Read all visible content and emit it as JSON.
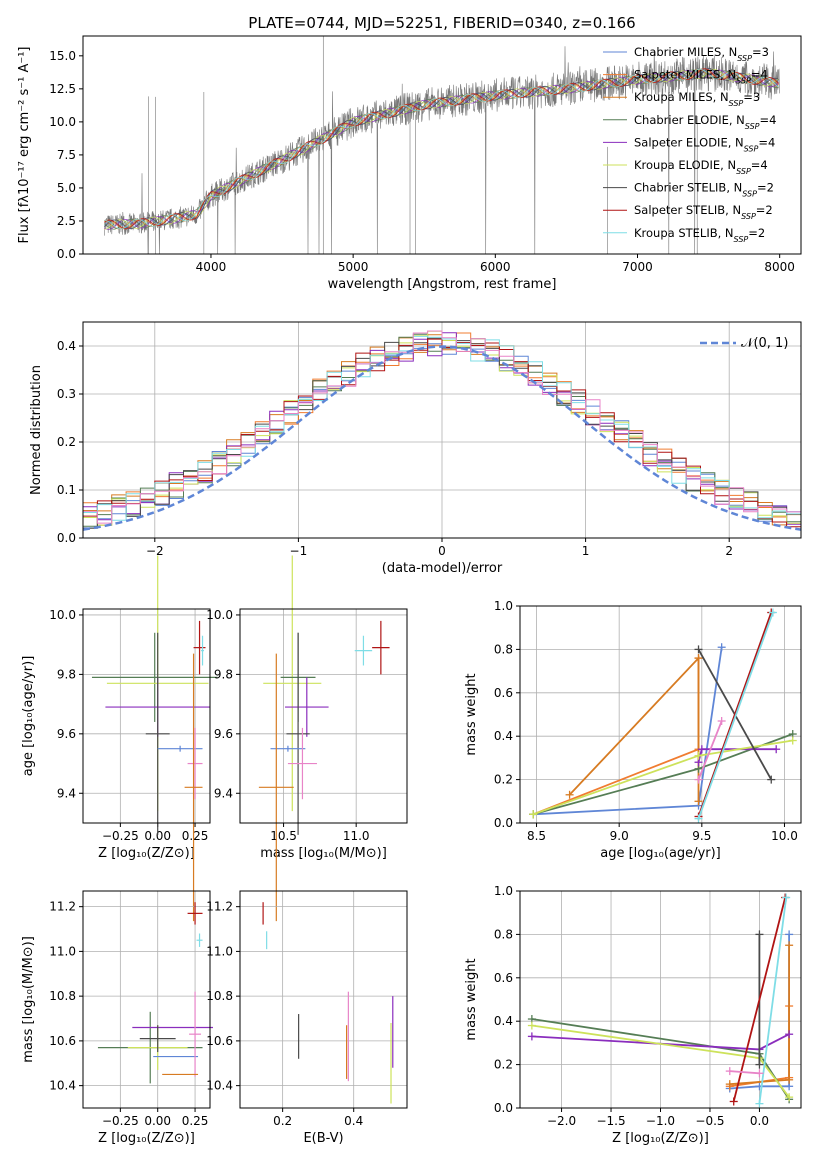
{
  "palette": {
    "chab_miles": "#5f86d6",
    "salp_miles": "#f07c30",
    "krou_miles": "#d77b22",
    "chab_elodie": "#557d55",
    "salp_elodie": "#8a2dbd",
    "krou_elodie": "#cde25b",
    "chab_stelib": "#4a4a4a",
    "salp_stelib": "#b01414",
    "krou_stelib": "#7fdde6",
    "pink": "#e884c8",
    "data_gray": "#777777"
  },
  "chart_data": [
    {
      "type": "line",
      "title": "PLATE=0744, MJD=52251, FIBERID=0340, z=0.166",
      "xlabel": "wavelength [Angstrom, rest frame]",
      "ylabel": "Flux [fλ10⁻¹⁷ erg cm⁻² s⁻¹ A⁻¹]",
      "xlim": [
        3100,
        8150
      ],
      "ylim": [
        0,
        16.5
      ],
      "xticks": [
        "4000",
        "5000",
        "6000",
        "7000",
        "8000"
      ],
      "yticks": [
        "0.0",
        "2.5",
        "5.0",
        "7.5",
        "10.0",
        "12.5",
        "15.0"
      ],
      "continuum": {
        "x": [
          3250,
          3500,
          3700,
          3900,
          4000,
          4200,
          4500,
          4800,
          5000,
          5500,
          6000,
          6500,
          7000,
          7500,
          8000
        ],
        "y": [
          2.2,
          2.3,
          2.6,
          3.0,
          4.4,
          5.5,
          7.1,
          8.8,
          10.0,
          11.3,
          12.0,
          12.5,
          13.2,
          13.7,
          12.9
        ]
      },
      "legend_loc": "upper right",
      "legend": [
        {
          "label": "Chabrier MILES, N",
          "sub": "SSP",
          "tail": "=3"
        },
        {
          "label": "Salpeter MILES, N",
          "sub": "SSP",
          "tail": "=4"
        },
        {
          "label": "Kroupa MILES, N",
          "sub": "SSP",
          "tail": "=3"
        },
        {
          "label": "Chabrier ELODIE, N",
          "sub": "SSP",
          "tail": "=4"
        },
        {
          "label": "Salpeter ELODIE, N",
          "sub": "SSP",
          "tail": "=4"
        },
        {
          "label": "Kroupa ELODIE, N",
          "sub": "SSP",
          "tail": "=4"
        },
        {
          "label": "Chabrier STELIB, N",
          "sub": "SSP",
          "tail": "=2"
        },
        {
          "label": "Salpeter STELIB, N",
          "sub": "SSP",
          "tail": "=2"
        },
        {
          "label": "Kroupa STELIB, N",
          "sub": "SSP",
          "tail": "=2"
        }
      ]
    },
    {
      "type": "histogram",
      "xlabel": "(data-model)/error",
      "ylabel": "Normed distribution",
      "xlim": [
        -2.5,
        2.5
      ],
      "ylim": [
        0,
        0.45
      ],
      "xticks": [
        "−2",
        "−1",
        "0",
        "1",
        "2"
      ],
      "yticks": [
        "0.0",
        "0.1",
        "0.2",
        "0.3",
        "0.4"
      ],
      "grid": true,
      "legend_label": "𝒩(0, 1)",
      "bin_width": 0.1,
      "bin_start": -2.5
    },
    {
      "type": "scatter",
      "xlabel": "Z [log₁₀(Z/Z⊙)]",
      "ylabel": "age  [log₁₀(age/yr)]",
      "xlim": [
        -0.5,
        0.35
      ],
      "ylim": [
        9.3,
        10.02
      ],
      "xticks": [
        "−0.25",
        "0.00",
        "0.25"
      ],
      "yticks": [
        "9.4",
        "9.6",
        "9.8",
        "10.0"
      ]
    },
    {
      "type": "scatter",
      "xlabel": "mass [log₁₀(M/M⊙)]",
      "ylabel": "",
      "xlim": [
        10.2,
        11.35
      ],
      "ylim": [
        9.3,
        10.02
      ],
      "xticks": [
        "10.5",
        "11.0"
      ],
      "yticks": [
        "9.4",
        "9.6",
        "9.8",
        "10.0"
      ]
    },
    {
      "type": "line",
      "xlabel": "age  [log₁₀(age/yr)]",
      "ylabel": "mass weight",
      "xlim": [
        8.4,
        10.1
      ],
      "ylim": [
        0,
        1
      ],
      "xticks": [
        "8.5",
        "9.0",
        "9.5",
        "10.0"
      ],
      "yticks": [
        "0.0",
        "0.2",
        "0.4",
        "0.6",
        "0.8",
        "1.0"
      ],
      "series": [
        {
          "key": "chab_miles",
          "x": [
            8.48,
            9.48,
            9.62
          ],
          "y": [
            0.04,
            0.08,
            0.81
          ]
        },
        {
          "key": "salp_miles",
          "x": [
            8.48,
            9.48,
            9.48
          ],
          "y": [
            0.04,
            0.34,
            0.76
          ]
        },
        {
          "key": "krou_miles",
          "x": [
            8.7,
            9.48,
            9.48
          ],
          "y": [
            0.13,
            0.76,
            0.1
          ]
        },
        {
          "key": "chab_elodie",
          "x": [
            8.48,
            9.48,
            10.05
          ],
          "y": [
            0.04,
            0.25,
            0.41
          ]
        },
        {
          "key": "salp_elodie",
          "x": [
            9.48,
            9.5,
            9.95
          ],
          "y": [
            0.28,
            0.34,
            0.34
          ]
        },
        {
          "key": "krou_elodie",
          "x": [
            8.48,
            9.48,
            10.05
          ],
          "y": [
            0.04,
            0.31,
            0.38
          ]
        },
        {
          "key": "chab_stelib",
          "x": [
            9.48,
            9.92
          ],
          "y": [
            0.8,
            0.2
          ]
        },
        {
          "key": "salp_stelib",
          "x": [
            9.48,
            9.92
          ],
          "y": [
            0.03,
            0.97
          ]
        },
        {
          "key": "krou_stelib",
          "x": [
            9.48,
            9.93
          ],
          "y": [
            0.02,
            0.97
          ]
        },
        {
          "key": "pink",
          "x": [
            9.48,
            9.62
          ],
          "y": [
            0.2,
            0.47
          ]
        }
      ]
    },
    {
      "type": "scatter",
      "xlabel": "Z [log₁₀(Z/Z⊙)]",
      "ylabel": "mass [log₁₀(M/M⊙)]",
      "xlim": [
        -0.5,
        0.35
      ],
      "ylim": [
        10.3,
        11.27
      ],
      "xticks": [
        "−0.25",
        "0.00",
        "0.25"
      ],
      "yticks": [
        "10.4",
        "10.6",
        "10.8",
        "11.0",
        "11.2"
      ]
    },
    {
      "type": "scatter",
      "xlabel": "E(B-V)",
      "ylabel": "",
      "xlim": [
        0.08,
        0.55
      ],
      "ylim": [
        10.3,
        11.27
      ],
      "xticks": [
        "0.2",
        "0.4"
      ],
      "yticks": [
        "10.4",
        "10.6",
        "10.8",
        "11.0",
        "11.2"
      ]
    },
    {
      "type": "line",
      "xlabel": "Z [log₁₀(Z/Z⊙)]",
      "ylabel": "mass weight",
      "xlim": [
        -2.42,
        0.42
      ],
      "ylim": [
        0,
        1
      ],
      "xticks": [
        "−2.0",
        "−1.5",
        "−1.0",
        "−0.5",
        "0.0"
      ],
      "yticks": [
        "0.0",
        "0.2",
        "0.4",
        "0.6",
        "0.8",
        "1.0"
      ],
      "series": [
        {
          "key": "chab_miles",
          "x": [
            -0.3,
            0.0,
            0.3,
            0.3
          ],
          "y": [
            0.09,
            0.1,
            0.1,
            0.8
          ]
        },
        {
          "key": "salp_miles",
          "x": [
            -0.3,
            0.3,
            0.3
          ],
          "y": [
            0.1,
            0.14,
            0.47
          ]
        },
        {
          "key": "krou_miles",
          "x": [
            -0.3,
            0.3,
            0.3
          ],
          "y": [
            0.11,
            0.13,
            0.75
          ]
        },
        {
          "key": "chab_elodie",
          "x": [
            -2.3,
            0.0,
            0.3
          ],
          "y": [
            0.41,
            0.25,
            0.04
          ]
        },
        {
          "key": "salp_elodie",
          "x": [
            -2.3,
            0.0,
            0.3
          ],
          "y": [
            0.33,
            0.27,
            0.34
          ]
        },
        {
          "key": "krou_elodie",
          "x": [
            -2.3,
            0.0,
            0.3
          ],
          "y": [
            0.38,
            0.23,
            0.05
          ]
        },
        {
          "key": "chab_stelib",
          "x": [
            0.0,
            0.0
          ],
          "y": [
            0.2,
            0.8
          ]
        },
        {
          "key": "salp_stelib",
          "x": [
            -0.26,
            0.26
          ],
          "y": [
            0.03,
            0.97
          ]
        },
        {
          "key": "krou_stelib",
          "x": [
            0.0,
            0.27
          ],
          "y": [
            0.02,
            0.97
          ]
        },
        {
          "key": "pink",
          "x": [
            -0.3,
            0.0
          ],
          "y": [
            0.17,
            0.16
          ]
        }
      ]
    }
  ]
}
